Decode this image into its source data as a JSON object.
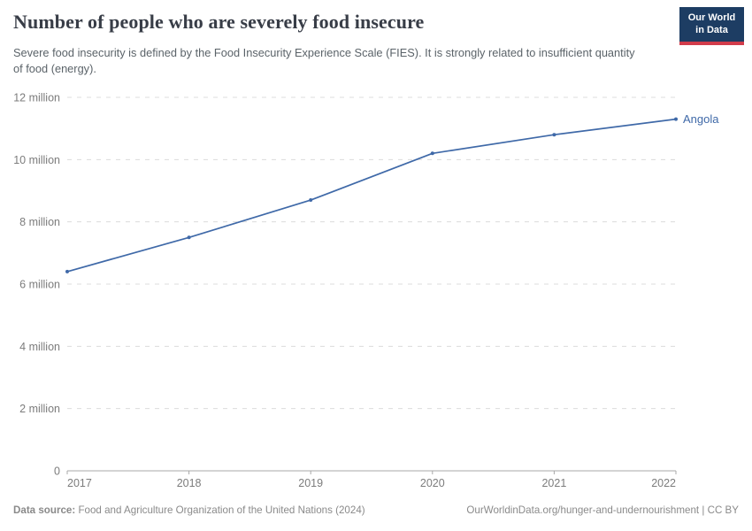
{
  "header": {
    "title": "Number of people who are severely food insecure",
    "subtitle": "Severe food insecurity is defined by the Food Insecurity Experience Scale (FIES). It is strongly related to insufficient quantity of food (energy).",
    "logo": {
      "line1": "Our World",
      "line2": "in Data",
      "bg_color": "#1d3d63",
      "accent_color": "#d13c4b"
    }
  },
  "chart_data": {
    "type": "line",
    "title": "Number of people who are severely food insecure",
    "x": [
      2017,
      2018,
      2019,
      2020,
      2021,
      2022
    ],
    "xtick_labels": [
      "2017",
      "2018",
      "2019",
      "2020",
      "2021",
      "2022"
    ],
    "series": [
      {
        "name": "Angola",
        "values_millions": [
          6.4,
          7.5,
          8.7,
          10.2,
          10.8,
          11.3
        ],
        "color": "#3f69a8"
      }
    ],
    "unit": "people",
    "ylim_millions": [
      0,
      12
    ],
    "ytick_interval_millions": 2,
    "ytick_labels": [
      "0",
      "2 million",
      "4 million",
      "6 million",
      "8 million",
      "10 million",
      "12 million"
    ],
    "grid": "horizontal dashed",
    "legend_position": "end-of-line label"
  },
  "footer": {
    "datasource_label": "Data source:",
    "datasource_text": " Food and Agriculture Organization of the United Nations (2024)",
    "attribution": "OurWorldinData.org/hunger-and-undernourishment | CC BY"
  }
}
